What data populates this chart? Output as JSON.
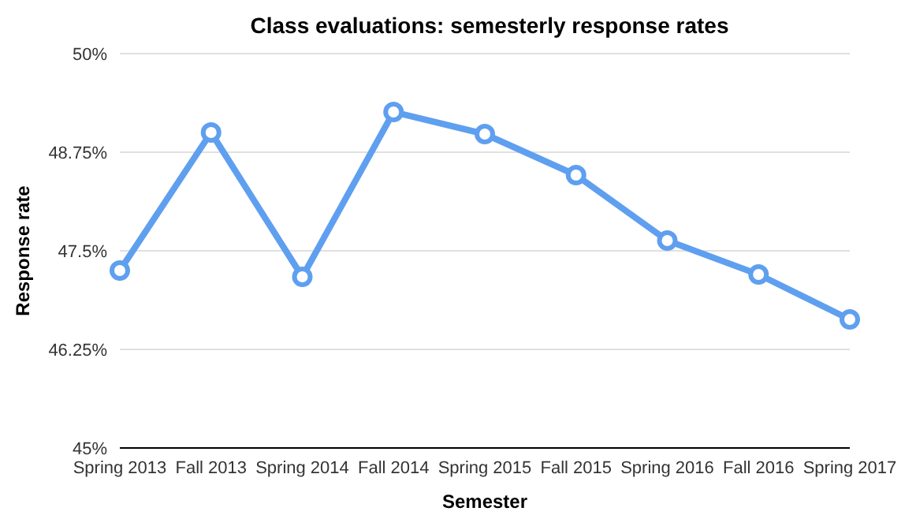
{
  "chart_data": {
    "type": "line",
    "title": "Class evaluations: semesterly response rates",
    "xlabel": "Semester",
    "ylabel": "Response rate",
    "categories": [
      "Spring 2013",
      "Fall 2013",
      "Spring 2014",
      "Fall 2014",
      "Spring 2015",
      "Fall 2015",
      "Spring 2016",
      "Fall 2016",
      "Spring 2017"
    ],
    "series": [
      {
        "color": "#5f9ff0",
        "values": [
          47.25,
          49.0,
          47.17,
          49.26,
          48.98,
          48.46,
          47.63,
          47.2,
          46.63
        ]
      }
    ],
    "ylim": [
      45,
      50
    ],
    "yticks": [
      {
        "value": 45,
        "label": "45%"
      },
      {
        "value": 46.25,
        "label": "46.25%"
      },
      {
        "value": 47.5,
        "label": "47.5%"
      },
      {
        "value": 48.75,
        "label": "48.75%"
      },
      {
        "value": 50,
        "label": "50%"
      }
    ],
    "grid": "y",
    "marker": "circle",
    "line_style": "solid"
  }
}
